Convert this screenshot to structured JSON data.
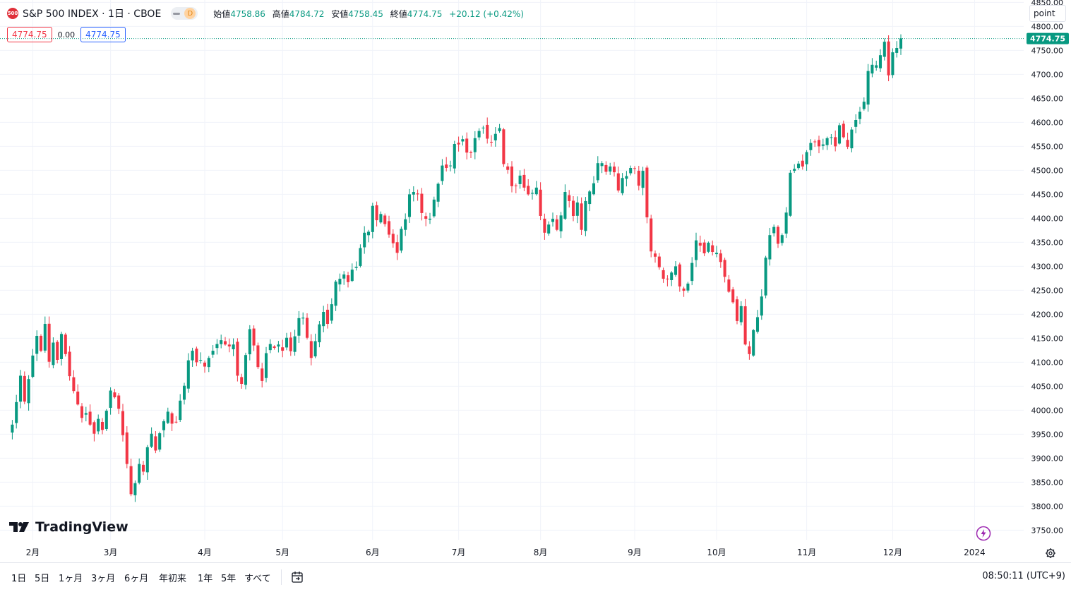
{
  "header": {
    "symbol_badge": "500",
    "title": "S&P 500 INDEX · 1日 · CBOE",
    "market_status_badge": "D",
    "ohlc": {
      "open_label": "始値",
      "open": "4758.86",
      "high_label": "高値",
      "high": "4784.72",
      "low_label": "安値",
      "low": "4758.45",
      "close_label": "終値",
      "close": "4774.75",
      "change": "+20.12 (+0.42%)"
    },
    "bid": "4774.75",
    "spread": "0.00",
    "ask": "4774.75",
    "unit_button": "point"
  },
  "logo_text": "TradingView",
  "bottom_bar": {
    "ranges": [
      "1日",
      "5日",
      "1ヶ月",
      "3ヶ月",
      "6ヶ月",
      "年初来",
      "1年",
      "5年",
      "すべて"
    ],
    "clock": "08:50:11 (UTC+9)"
  },
  "colors": {
    "up": "#089981",
    "down": "#f23645",
    "grid": "#f0f3fa",
    "last_price_line": "#089981"
  },
  "icons": [
    "symbol-badge-icon",
    "goto-date-icon",
    "flash-icon",
    "gear-icon"
  ],
  "chart_data": {
    "type": "candlestick",
    "symbol": "S&P 500 INDEX",
    "interval": "1日",
    "y_axis": {
      "min": 3730,
      "max": 4855,
      "ticks": [
        3750,
        3800,
        3850,
        3900,
        3950,
        4000,
        4050,
        4100,
        4150,
        4200,
        4250,
        4300,
        4350,
        4400,
        4450,
        4500,
        4550,
        4600,
        4650,
        4700,
        4750,
        4800,
        4850
      ],
      "tick_labels": [
        "3750.00",
        "3800.00",
        "3850.00",
        "3900.00",
        "3950.00",
        "4000.00",
        "4050.00",
        "4100.00",
        "4150.00",
        "4200.00",
        "4250.00",
        "4300.00",
        "4350.00",
        "4400.00",
        "4450.00",
        "4500.00",
        "4550.00",
        "4600.00",
        "4650.00",
        "4700.00",
        "4750.00",
        "4800.00",
        "4850.00"
      ]
    },
    "x_axis": {
      "start_index": -3,
      "end_index": 247,
      "labels": [
        {
          "label": "2月",
          "index": 5
        },
        {
          "label": "3月",
          "index": 24
        },
        {
          "label": "4月",
          "index": 47
        },
        {
          "label": "5月",
          "index": 66
        },
        {
          "label": "6月",
          "index": 88
        },
        {
          "label": "7月",
          "index": 109
        },
        {
          "label": "8月",
          "index": 129
        },
        {
          "label": "9月",
          "index": 152
        },
        {
          "label": "10月",
          "index": 172
        },
        {
          "label": "11月",
          "index": 194
        },
        {
          "label": "12月",
          "index": 215
        },
        {
          "label": "2024",
          "index": 235
        }
      ]
    },
    "last_price": 4774.75,
    "last_price_label": "4774.75",
    "grid": true,
    "closes": [
      3970,
      4017,
      4072,
      4018,
      4065,
      4114,
      4155,
      4124,
      4180,
      4101,
      4141,
      4105,
      4159,
      4117,
      4071,
      4040,
      4012,
      3984,
      3994,
      3970,
      3951,
      3982,
      3959,
      3999,
      4041,
      4027,
      4003,
      3948,
      3888,
      3825,
      3848,
      3888,
      3872,
      3923,
      3951,
      3916,
      3952,
      3977,
      3997,
      3972,
      3975,
      4020,
      4051,
      4104,
      4124,
      4100,
      4105,
      4091,
      4109,
      4124,
      4138,
      4146,
      4137,
      4133,
      4137,
      4072,
      4055,
      4115,
      4169,
      4135,
      4090,
      4061,
      4119,
      4138,
      4130,
      4137,
      4124,
      4151,
      4123,
      4154,
      4192,
      4193,
      4151,
      4109,
      4144,
      4179,
      4205,
      4180,
      4221,
      4268,
      4274,
      4283,
      4267,
      4293,
      4299,
      4338,
      4370,
      4372,
      4426,
      4396,
      4409,
      4388,
      4366,
      4348,
      4328,
      4378,
      4398,
      4450,
      4455,
      4450,
      4411,
      4399,
      4399,
      4439,
      4472,
      4510,
      4505,
      4510,
      4555,
      4554,
      4565,
      4537,
      4536,
      4567,
      4582,
      4589,
      4566,
      4558,
      4576,
      4588,
      4513,
      4501,
      4467,
      4468,
      4489,
      4464,
      4450,
      4453,
      4464,
      4405,
      4370,
      4387,
      4399,
      4376,
      4406,
      4455,
      4436,
      4405,
      4433,
      4376,
      4436,
      4456,
      4473,
      4515,
      4515,
      4497,
      4508,
      4496,
      4458,
      4484,
      4488,
      4505,
      4503,
      4468,
      4499,
      4402,
      4331,
      4320,
      4298,
      4274,
      4273,
      4287,
      4300,
      4258,
      4249,
      4264,
      4307,
      4354,
      4343,
      4327,
      4349,
      4330,
      4328,
      4309,
      4278,
      4247,
      4225,
      4186,
      4217,
      4137,
      4117,
      4167,
      4194,
      4237,
      4318,
      4365,
      4382,
      4347,
      4365,
      4412,
      4495,
      4503,
      4514,
      4508,
      4538,
      4557,
      4559,
      4550,
      4554,
      4567,
      4569,
      4550,
      4594,
      4569,
      4549,
      4585,
      4605,
      4622,
      4643,
      4707,
      4720,
      4719,
      4740,
      4768,
      4698,
      4746,
      4755,
      4775
    ]
  }
}
